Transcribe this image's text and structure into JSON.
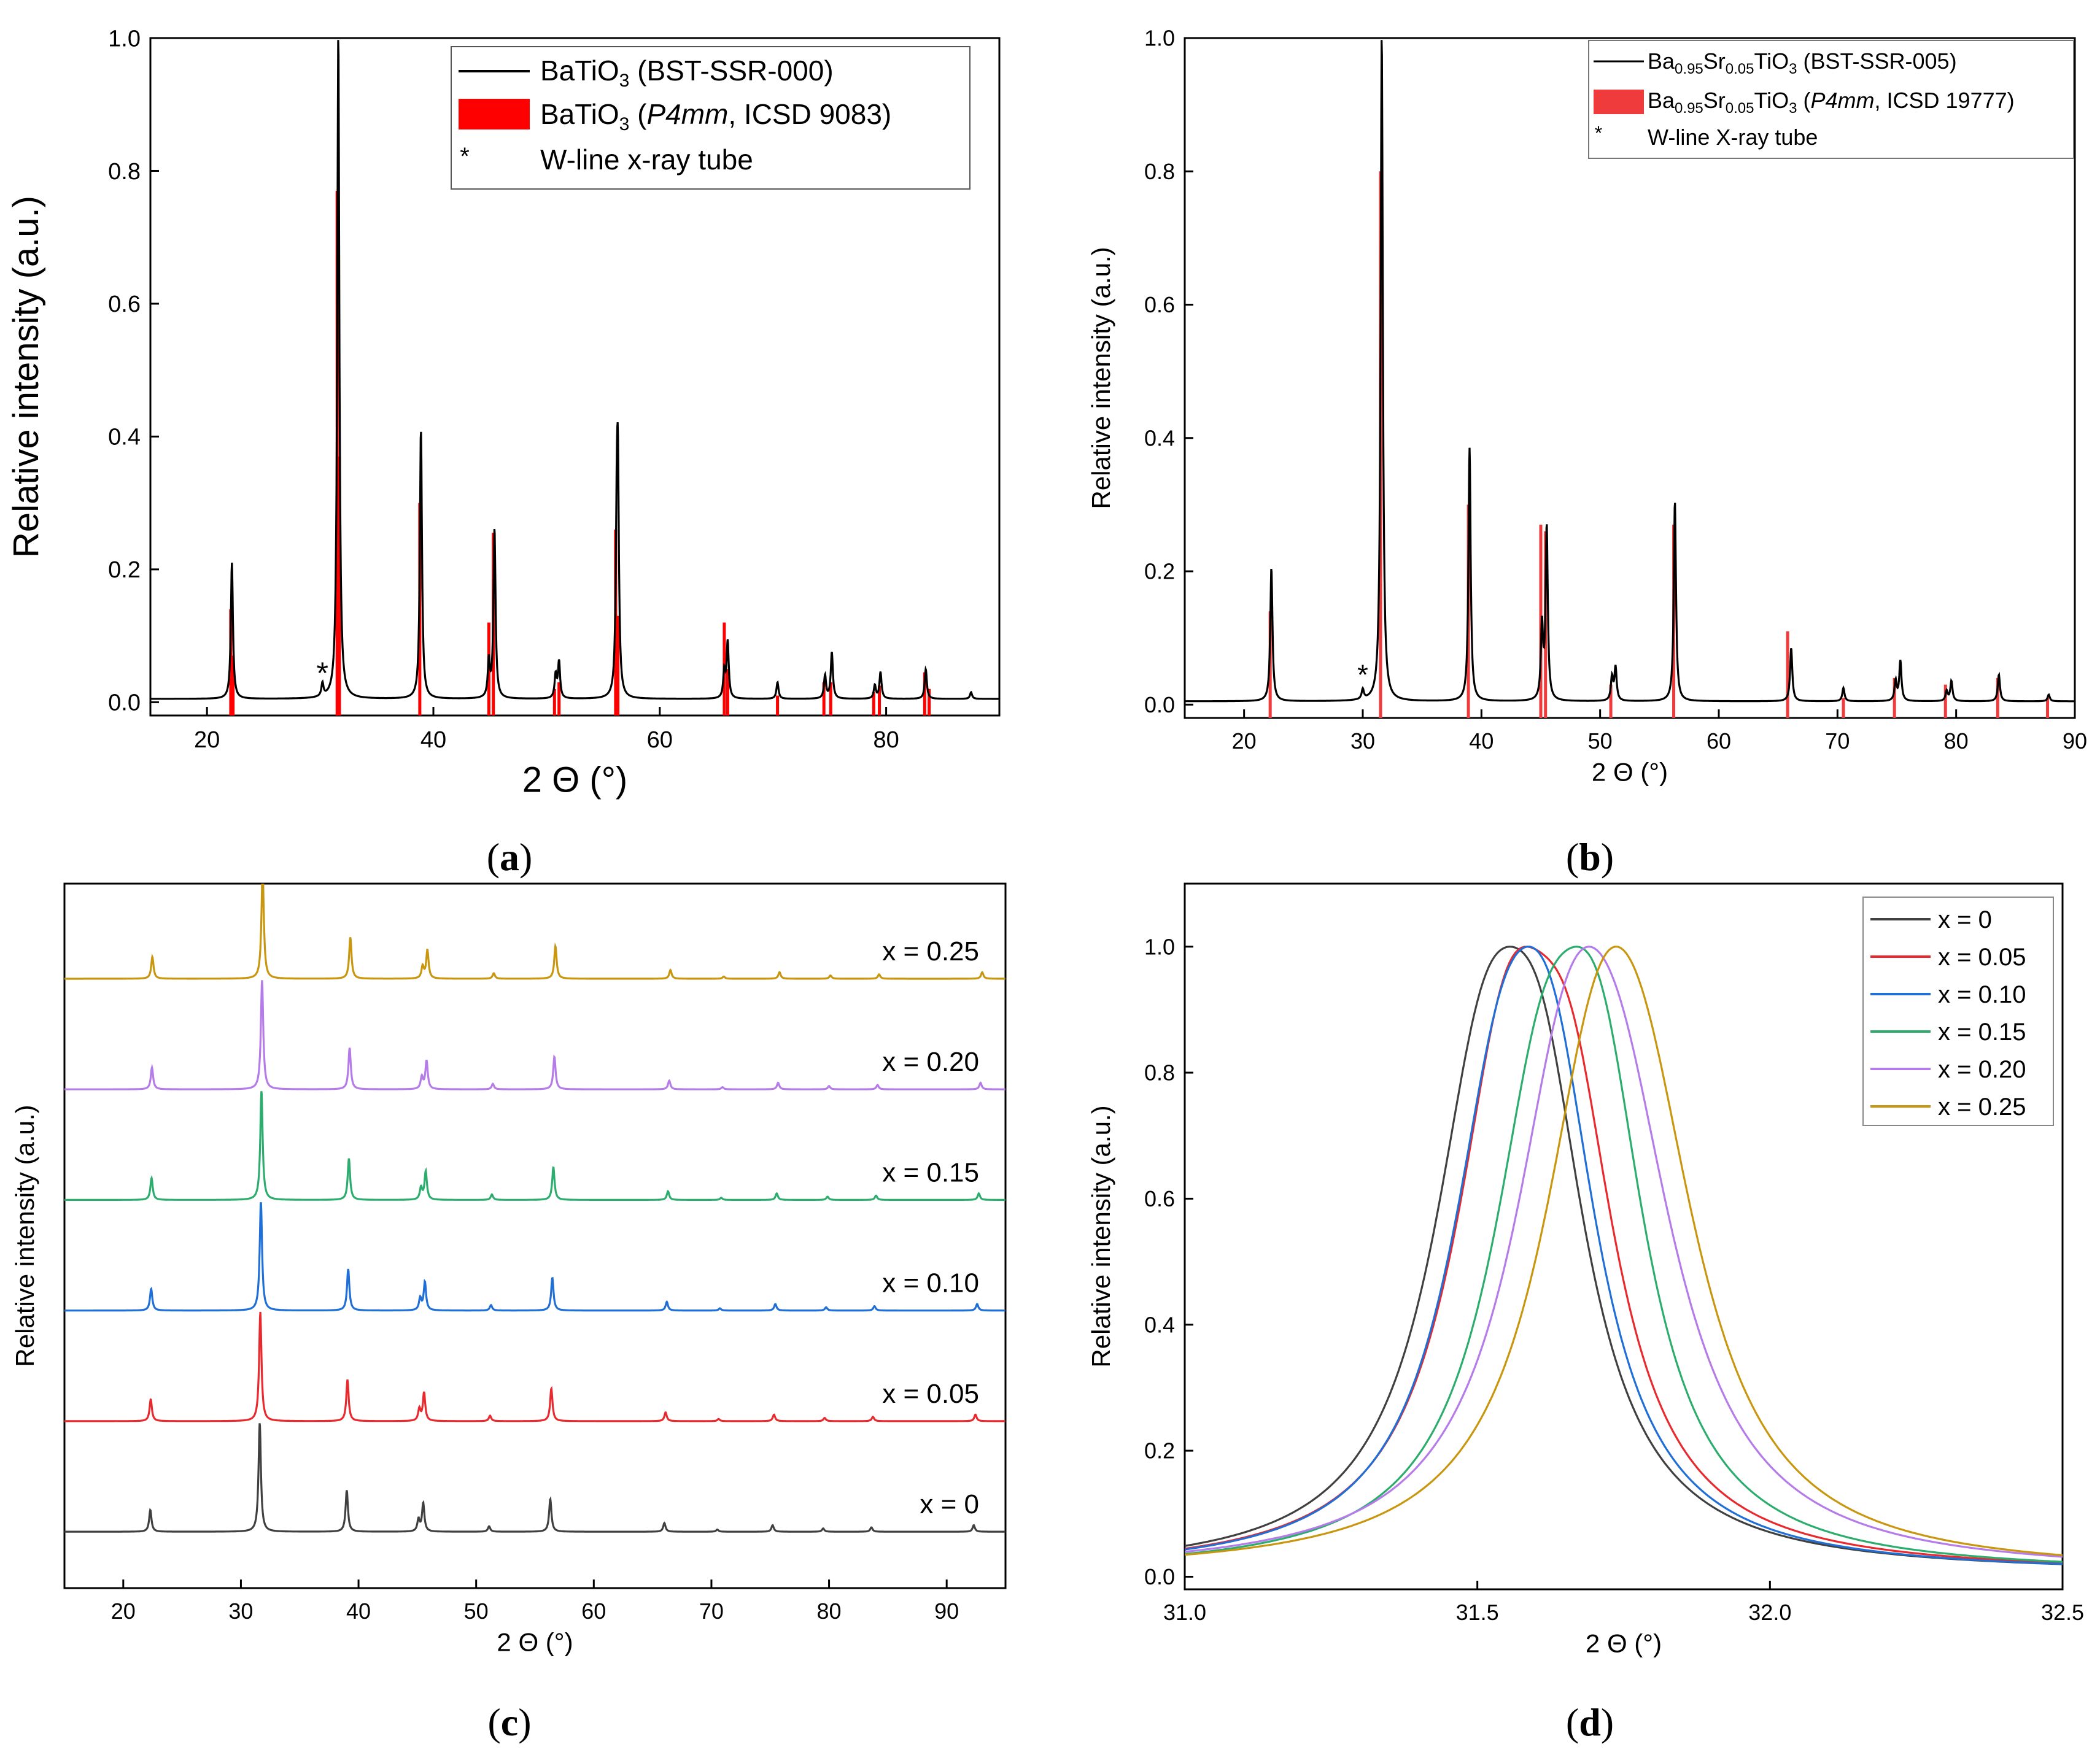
{
  "figure": {
    "panel_labels": [
      "(a)",
      "(b)",
      "(c)",
      "(d)"
    ],
    "panel_letters": [
      "a",
      "b",
      "c",
      "d"
    ]
  },
  "chart_data": [
    {
      "panel": "a",
      "type": "line",
      "xlabel": "2 Θ (°)",
      "ylabel": "Relative intensity (a.u.)",
      "xlim": [
        15,
        90
      ],
      "ylim": [
        -0.02,
        1.0
      ],
      "xticks": [
        20,
        40,
        60,
        80
      ],
      "yticks": [
        0.0,
        0.2,
        0.4,
        0.6,
        0.8,
        1.0
      ],
      "tick_format": "0.0",
      "legend": {
        "position": "top-right",
        "entries": [
          {
            "type": "line",
            "text": "BaTiO",
            "sub": "3",
            "rest": " (BST-SSR-000)",
            "italic": "",
            "rest2": "",
            "color": "#000000"
          },
          {
            "type": "bar",
            "text": "BaTiO",
            "sub": "3",
            "rest": " (",
            "italic": "P4mm",
            "rest2": ", ICSD 9083)",
            "color": "#ff0000"
          },
          {
            "type": "star",
            "text": "W-line x-ray tube",
            "sub": "",
            "rest": "",
            "italic": "",
            "rest2": "",
            "color": "#000000"
          }
        ]
      },
      "annotation": {
        "text": "*",
        "x": 30.2,
        "y": 0.028
      },
      "baseline": 0.005,
      "series": [
        {
          "name": "BaTiO3 (BST-SSR-000)",
          "color": "#000000",
          "peaks": [
            [
              22.2,
              0.205
            ],
            [
              30.2,
              0.02
            ],
            [
              31.6,
              1.0
            ],
            [
              38.9,
              0.405
            ],
            [
              44.9,
              0.055
            ],
            [
              45.4,
              0.255
            ],
            [
              50.8,
              0.035
            ],
            [
              51.1,
              0.055
            ],
            [
              56.2,
              0.2
            ],
            [
              56.3,
              0.295
            ],
            [
              65.7,
              0.04
            ],
            [
              66.0,
              0.085
            ],
            [
              70.4,
              0.025
            ],
            [
              74.6,
              0.035
            ],
            [
              75.2,
              0.07
            ],
            [
              79.0,
              0.02
            ],
            [
              79.5,
              0.04
            ],
            [
              83.5,
              0.045
            ],
            [
              87.5,
              0.01
            ]
          ]
        },
        {
          "name": "BaTiO3 (P4mm, ICSD 9083)",
          "color": "#ff0000",
          "style": "sticks",
          "baseline": -0.02,
          "peaks": [
            [
              22.1,
              0.14
            ],
            [
              22.3,
              0.07
            ],
            [
              31.5,
              0.77
            ],
            [
              31.7,
              0.37
            ],
            [
              38.8,
              0.3
            ],
            [
              44.9,
              0.12
            ],
            [
              45.3,
              0.255
            ],
            [
              50.7,
              0.02
            ],
            [
              51.1,
              0.03
            ],
            [
              56.1,
              0.26
            ],
            [
              56.3,
              0.13
            ],
            [
              65.7,
              0.12
            ],
            [
              66.0,
              0.05
            ],
            [
              70.4,
              0.01
            ],
            [
              74.5,
              0.03
            ],
            [
              75.1,
              0.03
            ],
            [
              78.9,
              0.015
            ],
            [
              79.4,
              0.025
            ],
            [
              83.4,
              0.045
            ],
            [
              83.8,
              0.02
            ]
          ]
        }
      ]
    },
    {
      "panel": "b",
      "type": "line",
      "xlabel": "2 Θ (°)",
      "ylabel": "Relative intensity (a.u.)",
      "xlim": [
        15,
        90
      ],
      "ylim": [
        -0.02,
        1.0
      ],
      "xticks": [
        20,
        30,
        40,
        50,
        60,
        70,
        80,
        90
      ],
      "yticks": [
        0.0,
        0.2,
        0.4,
        0.6,
        0.8,
        1.0
      ],
      "tick_format": "0.0",
      "legend": {
        "position": "top-right",
        "entries": [
          {
            "type": "line",
            "text": "Ba",
            "sub": "0.95",
            "text2": "Sr",
            "sub2": "0.05",
            "text3": "TiO",
            "sub3": "3",
            "rest": " (BST-SSR-005)",
            "italic": "",
            "rest2": "",
            "color": "#000000"
          },
          {
            "type": "bar",
            "text": "Ba",
            "sub": "0.95",
            "text2": "Sr",
            "sub2": "0.05",
            "text3": "TiO",
            "sub3": "3",
            "rest": " (",
            "italic": "P4mm",
            "rest2": ", ICSD 19777)",
            "color": "#ef3b3b"
          },
          {
            "type": "star",
            "text": "W-line X-ray tube",
            "color": "#000000"
          }
        ]
      },
      "annotation": {
        "text": "*",
        "x": 30.0,
        "y": 0.03
      },
      "baseline": 0.005,
      "series": [
        {
          "name": "Ba0.95Sr0.05TiO3 (BST-SSR-005)",
          "color": "#000000",
          "peaks": [
            [
              22.3,
              0.2
            ],
            [
              30.0,
              0.015
            ],
            [
              31.6,
              1.0
            ],
            [
              39.0,
              0.38
            ],
            [
              45.1,
              0.11
            ],
            [
              45.5,
              0.26
            ],
            [
              51.0,
              0.035
            ],
            [
              51.3,
              0.05
            ],
            [
              56.3,
              0.3
            ],
            [
              66.1,
              0.08
            ],
            [
              70.5,
              0.02
            ],
            [
              74.9,
              0.03
            ],
            [
              75.3,
              0.06
            ],
            [
              79.2,
              0.015
            ],
            [
              79.6,
              0.03
            ],
            [
              83.6,
              0.04
            ],
            [
              87.8,
              0.01
            ]
          ]
        },
        {
          "name": "Ba0.95Sr0.05TiO3 (P4mm, ICSD 19777)",
          "color": "#ef3b3b",
          "style": "sticks",
          "baseline": -0.02,
          "peaks": [
            [
              22.2,
              0.14
            ],
            [
              31.5,
              0.8
            ],
            [
              38.9,
              0.3
            ],
            [
              45.0,
              0.27
            ],
            [
              45.4,
              0.26
            ],
            [
              50.9,
              0.03
            ],
            [
              56.2,
              0.27
            ],
            [
              65.8,
              0.11
            ],
            [
              70.5,
              0.01
            ],
            [
              74.8,
              0.04
            ],
            [
              79.1,
              0.03
            ],
            [
              83.5,
              0.04
            ],
            [
              87.7,
              0.01
            ]
          ]
        }
      ]
    },
    {
      "panel": "c",
      "type": "line",
      "xlabel": "2 Θ (°)",
      "ylabel": "Relative intensity (a.u.)",
      "xlim": [
        15,
        95
      ],
      "ylim": [
        0,
        1
      ],
      "xticks": [
        20,
        30,
        40,
        50,
        60,
        70,
        80,
        90
      ],
      "yticks": [],
      "offset_step": 0.157,
      "offset_start": 0.08,
      "peak_scale": 0.155,
      "series": [
        {
          "name": "x = 0",
          "color": "#404040",
          "shift": 0.0
        },
        {
          "name": "x = 0.05",
          "color": "#e8292e",
          "shift": 0.05
        },
        {
          "name": "x = 0.10",
          "color": "#1f6fd6",
          "shift": 0.1
        },
        {
          "name": "x = 0.15",
          "color": "#2cad6e",
          "shift": 0.15
        },
        {
          "name": "x = 0.20",
          "color": "#b57be8",
          "shift": 0.2
        },
        {
          "name": "x = 0.25",
          "color": "#c8960f",
          "shift": 0.25
        }
      ],
      "peaks": [
        [
          22.3,
          0.2
        ],
        [
          31.6,
          1.0
        ],
        [
          39.0,
          0.38
        ],
        [
          45.1,
          0.11
        ],
        [
          45.5,
          0.26
        ],
        [
          51.1,
          0.05
        ],
        [
          56.3,
          0.3
        ],
        [
          66.0,
          0.08
        ],
        [
          70.5,
          0.02
        ],
        [
          75.2,
          0.06
        ],
        [
          79.5,
          0.03
        ],
        [
          83.6,
          0.04
        ],
        [
          92.3,
          0.06
        ]
      ]
    },
    {
      "panel": "d",
      "type": "line",
      "xlabel": "2 Θ (°)",
      "ylabel": "Relative intensity (a.u.)",
      "xlim": [
        31.0,
        32.5
      ],
      "ylim": [
        -0.02,
        1.1
      ],
      "xticks": [
        31.0,
        31.5,
        32.0,
        32.5
      ],
      "yticks": [
        0.0,
        0.2,
        0.4,
        0.6,
        0.8,
        1.0
      ],
      "legend": {
        "position": "top-right"
      },
      "series": [
        {
          "name": "x = 0",
          "color": "#404040",
          "p1": 31.51,
          "p2": 31.61,
          "r": 0.84,
          "w": 0.11
        },
        {
          "name": "x = 0.05",
          "color": "#e8292e",
          "p1": 31.55,
          "p2": 31.66,
          "r": 0.76,
          "w": 0.11
        },
        {
          "name": "x = 0.10",
          "color": "#1f6fd6",
          "p1": 31.54,
          "p2": 31.63,
          "r": 0.9,
          "w": 0.11
        },
        {
          "name": "x = 0.15",
          "color": "#2cad6e",
          "p1": 31.61,
          "p2": 31.71,
          "r": 0.97,
          "w": 0.11
        },
        {
          "name": "x = 0.20",
          "color": "#b57be8",
          "p1": 31.74,
          "p2": 31.65,
          "r": 0.94,
          "w": 0.13
        },
        {
          "name": "x = 0.25",
          "color": "#c8960f",
          "p1": 31.78,
          "p2": 31.7,
          "r": 0.92,
          "w": 0.13
        }
      ]
    }
  ]
}
